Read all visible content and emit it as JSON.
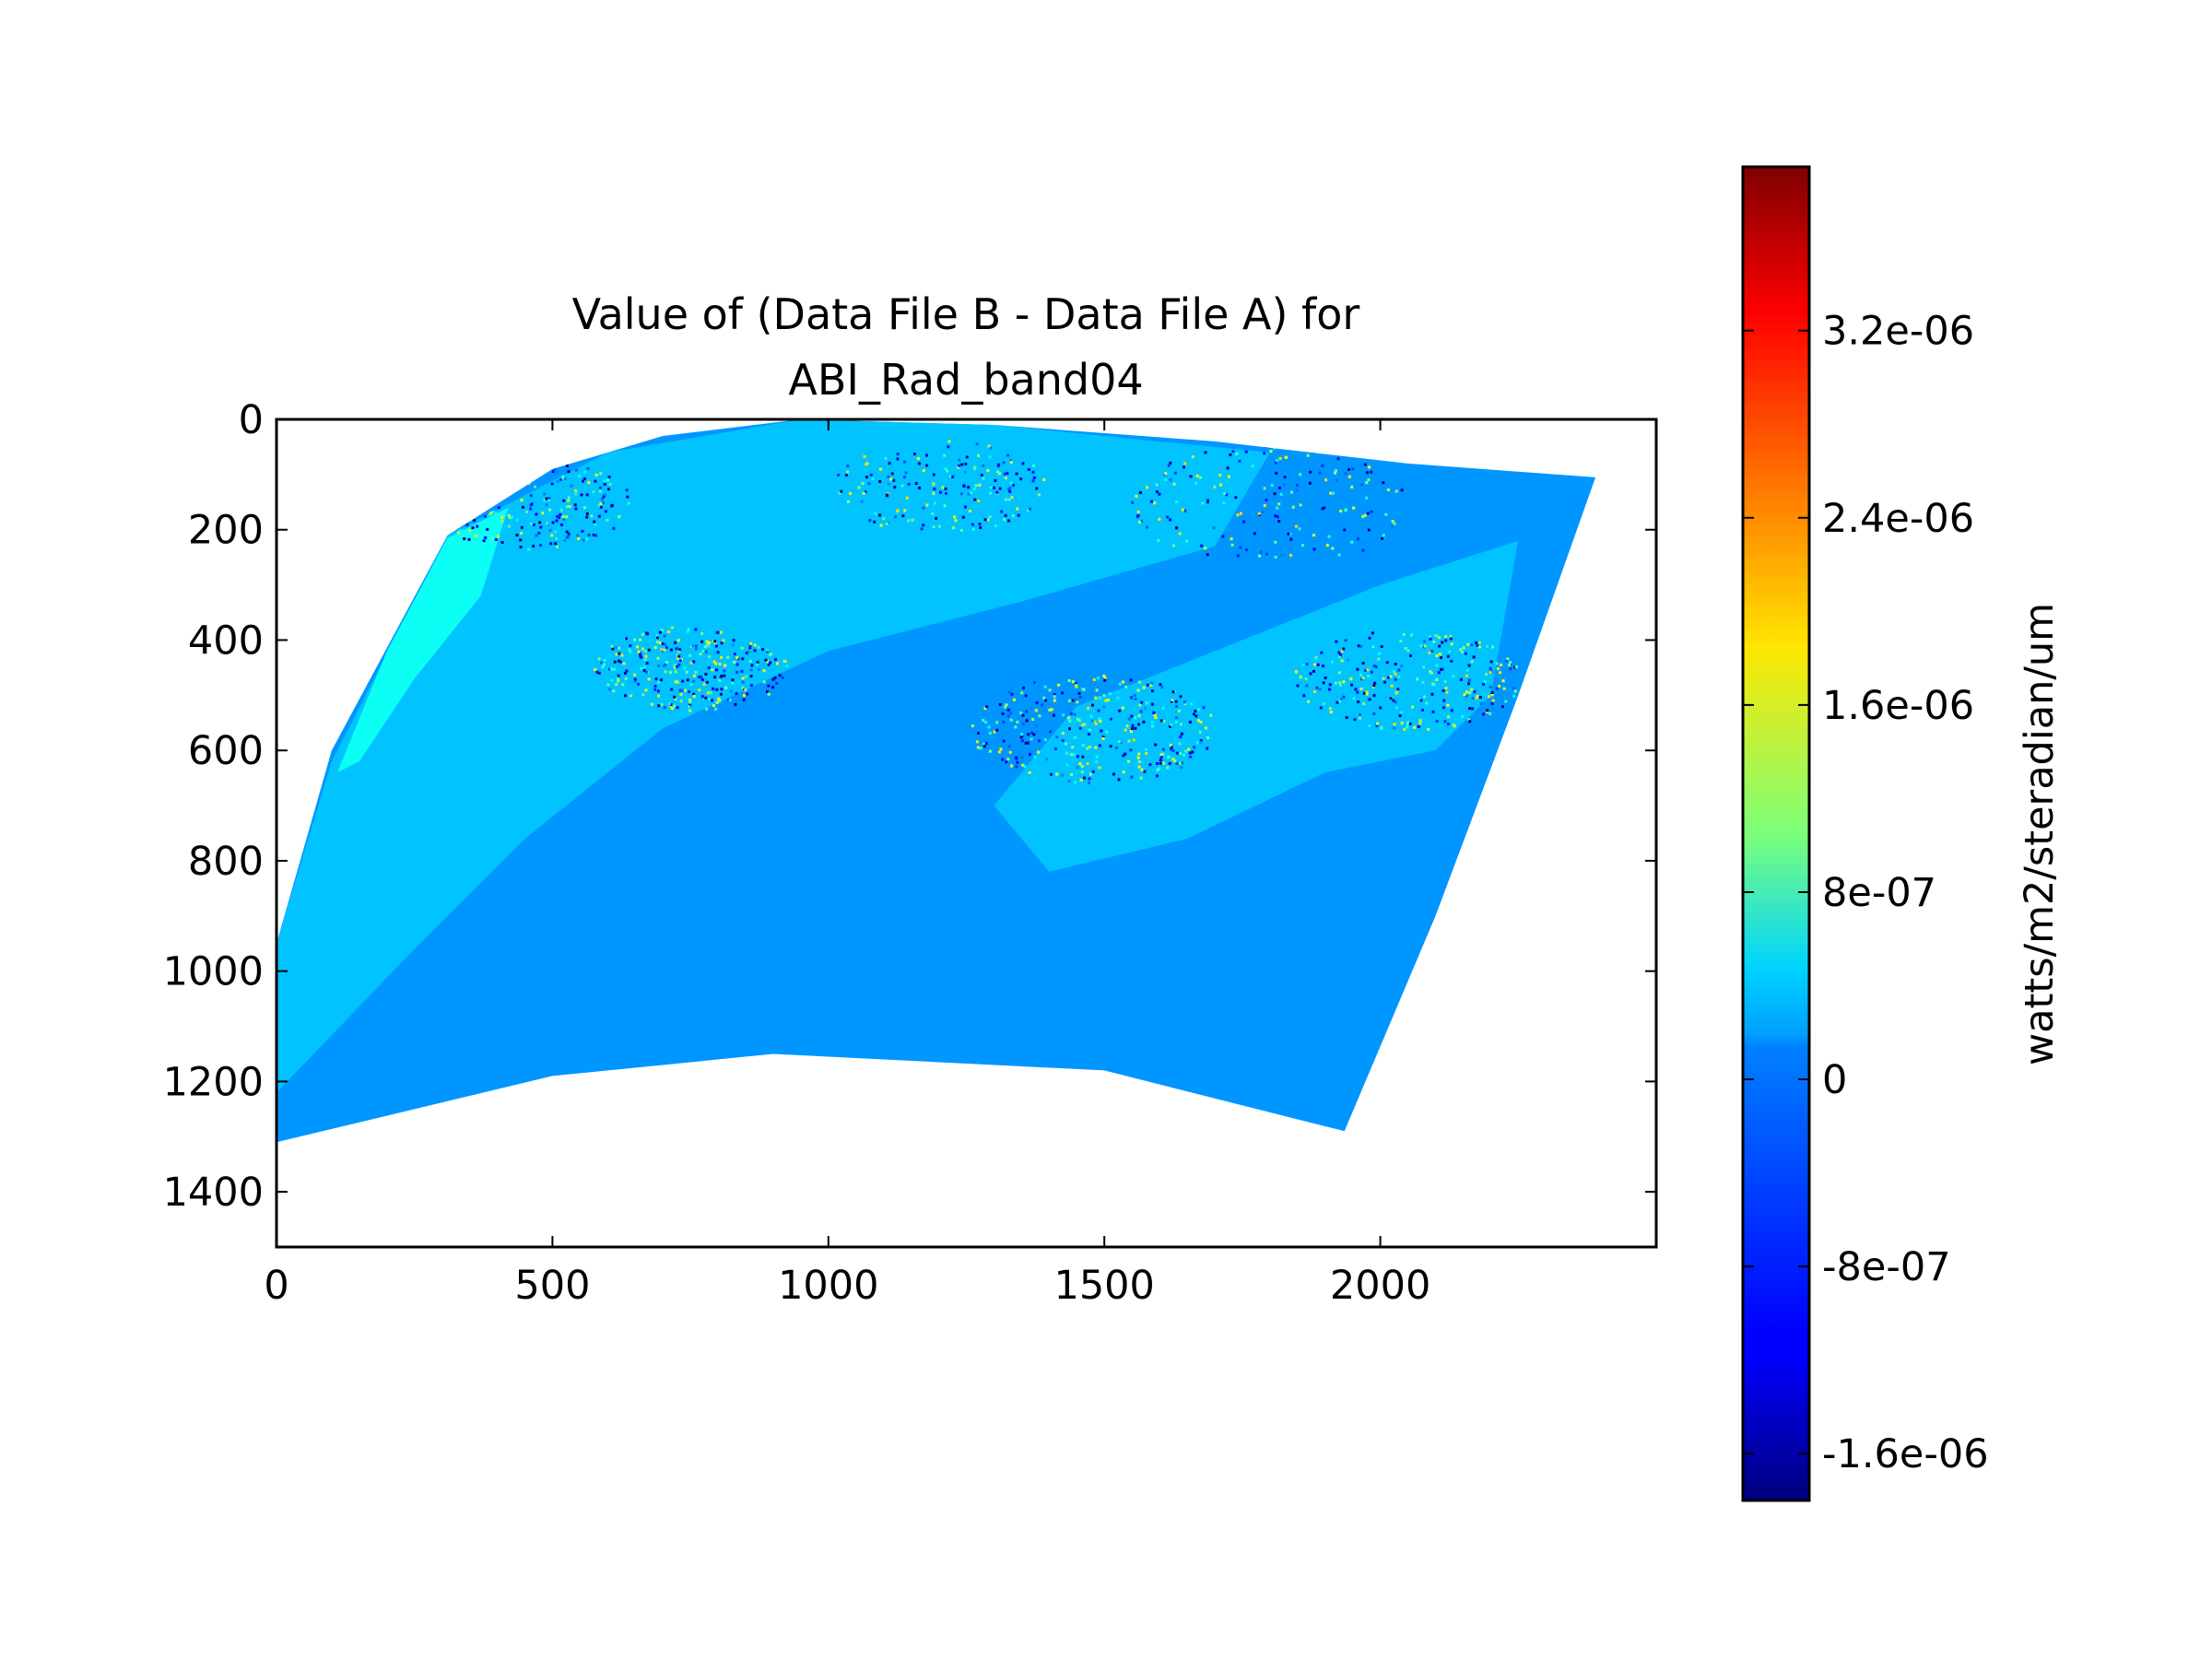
{
  "chart_data": {
    "type": "heatmap",
    "title": [
      "Value of (Data File B - Data File A) for",
      "ABI_Rad_band04"
    ],
    "xlabel": "",
    "ylabel": "",
    "xlim": [
      0,
      2500
    ],
    "ylim": [
      1500,
      0
    ],
    "x_ticks": [
      0,
      500,
      1000,
      1500,
      2000
    ],
    "y_ticks": [
      0,
      200,
      400,
      600,
      800,
      1000,
      1200,
      1400
    ],
    "colorbar": {
      "colormap": "jet",
      "range": [
        -1.8e-06,
        3.9e-06
      ],
      "label": "watts/m2/steradian/um",
      "ticks": [
        {
          "value": 3.2e-06,
          "label": "3.2e-06"
        },
        {
          "value": 2.4e-06,
          "label": "2.4e-06"
        },
        {
          "value": 1.6e-06,
          "label": "1.6e-06"
        },
        {
          "value": 8e-07,
          "label": "8e-07"
        },
        {
          "value": 0,
          "label": "0"
        },
        {
          "value": -8e-07,
          "label": "-8e-07"
        },
        {
          "value": -1.6e-06,
          "label": "-1.6e-06"
        }
      ]
    },
    "data_region": {
      "boundary_top": [
        [
          310,
          210
        ],
        [
          500,
          90
        ],
        [
          700,
          30
        ],
        [
          950,
          0
        ],
        [
          1300,
          10
        ],
        [
          1700,
          40
        ],
        [
          2050,
          80
        ],
        [
          2390,
          105
        ]
      ],
      "boundary_right": [
        [
          2390,
          105
        ],
        [
          2250,
          500
        ],
        [
          2100,
          900
        ],
        [
          1935,
          1290
        ]
      ],
      "boundary_bottom": [
        [
          1935,
          1290
        ],
        [
          1500,
          1180
        ],
        [
          900,
          1150
        ],
        [
          500,
          1190
        ],
        [
          0,
          1310
        ]
      ],
      "boundary_left": [
        [
          0,
          1310
        ],
        [
          0,
          950
        ],
        [
          100,
          600
        ],
        [
          310,
          210
        ]
      ],
      "background_value": -2.5e-07,
      "regions": [
        {
          "value": 0,
          "points": [
            [
              0,
              1220
            ],
            [
              0,
              950
            ],
            [
              100,
              620
            ],
            [
              310,
              210
            ],
            [
              600,
              60
            ],
            [
              950,
              0
            ],
            [
              1300,
              10
            ],
            [
              1800,
              60
            ],
            [
              1700,
              230
            ],
            [
              1350,
              330
            ],
            [
              1000,
              420
            ],
            [
              700,
              560
            ],
            [
              450,
              760
            ],
            [
              250,
              960
            ]
          ]
        },
        {
          "value": 4e-07,
          "points": [
            [
              110,
              640
            ],
            [
              200,
              420
            ],
            [
              310,
              215
            ],
            [
              420,
              160
            ],
            [
              370,
              320
            ],
            [
              250,
              470
            ],
            [
              150,
              620
            ]
          ]
        },
        {
          "value": 0,
          "points": [
            [
              1450,
              520
            ],
            [
              1700,
              420
            ],
            [
              2000,
              300
            ],
            [
              2250,
              220
            ],
            [
              2200,
              500
            ],
            [
              2100,
              600
            ],
            [
              1900,
              640
            ],
            [
              1650,
              760
            ],
            [
              1400,
              820
            ],
            [
              1300,
              700
            ]
          ]
        }
      ],
      "noise_spots": [
        {
          "x": 750,
          "y": 450,
          "r": 110,
          "density": 0.5
        },
        {
          "x": 1480,
          "y": 560,
          "r": 140,
          "density": 0.55
        },
        {
          "x": 2050,
          "y": 470,
          "r": 130,
          "density": 0.45
        },
        {
          "x": 450,
          "y": 150,
          "r": 120,
          "density": 0.4
        },
        {
          "x": 1800,
          "y": 150,
          "r": 160,
          "density": 0.3
        },
        {
          "x": 1200,
          "y": 120,
          "r": 120,
          "density": 0.3
        }
      ]
    }
  }
}
